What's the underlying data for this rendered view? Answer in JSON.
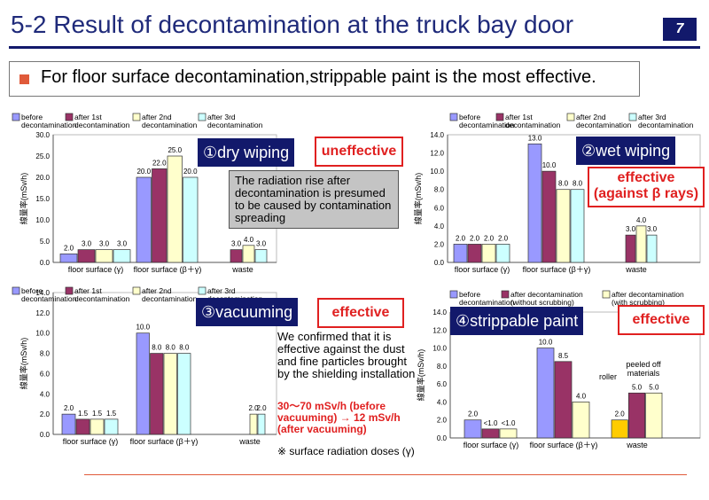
{
  "header": {
    "title": "5-2 Result of decontamination at the truck bay door",
    "page_number": "7",
    "headline": "For floor surface decontamination,strippable paint is the most effective."
  },
  "colors": {
    "before": "#9999ff",
    "after1": "#993366",
    "after2": "#ffffcc",
    "after3": "#ccffff",
    "roller": "#ffcc00",
    "accent": "#12196b",
    "red": "#e02020"
  },
  "panels": {
    "p1": {
      "tag": "①dry wiping",
      "verdict": "uneffective",
      "note": "The radiation rise after decontamination is presumed to be caused by contamination spreading"
    },
    "p2": {
      "tag": "②wet wiping",
      "verdict_line1": "effective",
      "verdict_line2": "(against β rays)"
    },
    "p3": {
      "tag": "③vacuuming",
      "verdict": "effective",
      "note": "We confirmed that it is effective against the dust and fine particles brought by the shielding installation",
      "note_red": "30～70 mSv/h (before vacuuming) → 12 mSv/h (after vacuuming)",
      "footnote": "※  surface radiation doses (γ)"
    },
    "p4": {
      "tag": "④strippable paint",
      "verdict": "effective"
    }
  },
  "chart_data": [
    {
      "type": "bar",
      "ylabel": "線量率(mSv/h)",
      "ylim": [
        0,
        30
      ],
      "yticks": [
        "0.0",
        "5.0",
        "10.0",
        "15.0",
        "20.0",
        "25.0",
        "30.0"
      ],
      "categories": [
        "floor surface (γ)",
        "floor surface (β＋γ)",
        "waste"
      ],
      "series": [
        {
          "name": "before decontamination",
          "values": [
            2.0,
            20.0,
            null
          ]
        },
        {
          "name": "after 1st decontamination",
          "values": [
            3.0,
            22.0,
            3.0
          ]
        },
        {
          "name": "after 2nd decontamination",
          "values": [
            3.0,
            25.0,
            4.0
          ]
        },
        {
          "name": "after 3rd decontamination",
          "values": [
            3.0,
            20.0,
            3.0
          ]
        }
      ],
      "labels": [
        [
          "2.0",
          "20.0",
          ""
        ],
        [
          "3.0",
          "22.0",
          "3.0"
        ],
        [
          "3.0",
          "25.0",
          "4.0"
        ],
        [
          "3.0",
          "20.0",
          "3.0"
        ]
      ]
    },
    {
      "type": "bar",
      "ylabel": "線量率(mSv/h)",
      "ylim": [
        0,
        14
      ],
      "yticks": [
        "0.0",
        "2.0",
        "4.0",
        "6.0",
        "8.0",
        "10.0",
        "12.0",
        "14.0"
      ],
      "categories": [
        "floor surface (γ)",
        "floor surface (β＋γ)",
        "waste"
      ],
      "series": [
        {
          "name": "before decontamination",
          "values": [
            2.0,
            13.0,
            null
          ]
        },
        {
          "name": "after 1st decontamination",
          "values": [
            2.0,
            10.0,
            3.0
          ]
        },
        {
          "name": "after 2nd decontamination",
          "values": [
            2.0,
            8.0,
            4.0
          ]
        },
        {
          "name": "after 3rd decontamination",
          "values": [
            2.0,
            8.0,
            3.0
          ]
        }
      ],
      "labels": [
        [
          "2.0",
          "13.0",
          ""
        ],
        [
          "2.0",
          "10.0",
          "3.0"
        ],
        [
          "2.0",
          "8.0",
          "4.0"
        ],
        [
          "2.0",
          "8.0",
          "3.0"
        ]
      ]
    },
    {
      "type": "bar",
      "ylabel": "線量率(mSv/h)",
      "ylim": [
        0,
        14
      ],
      "yticks": [
        "0.0",
        "2.0",
        "4.0",
        "6.0",
        "8.0",
        "10.0",
        "12.0",
        "14.0"
      ],
      "categories": [
        "floor surface (γ)",
        "floor surface (β＋γ)",
        "waste"
      ],
      "series": [
        {
          "name": "before decontamination",
          "values": [
            2.0,
            10.0,
            null
          ]
        },
        {
          "name": "after 1st decontamination",
          "values": [
            1.5,
            8.0,
            null
          ]
        },
        {
          "name": "after 2nd decontamination",
          "values": [
            1.5,
            8.0,
            2.0
          ]
        },
        {
          "name": "after 3rd decontamination",
          "values": [
            1.5,
            8.0,
            2.0
          ]
        }
      ],
      "labels": [
        [
          "2.0",
          "10.0",
          ""
        ],
        [
          "1.5",
          "8.0",
          ""
        ],
        [
          "1.5",
          "8.0",
          "2.0"
        ],
        [
          "1.5",
          "8.0",
          "2.0"
        ]
      ]
    },
    {
      "type": "bar",
      "ylabel": "線量率(mSv/h)",
      "ylim": [
        0,
        14
      ],
      "yticks": [
        "0.0",
        "2.0",
        "4.0",
        "6.0",
        "8.0",
        "10.0",
        "12.0",
        "14.0"
      ],
      "categories": [
        "floor surface (γ)",
        "floor surface (β＋γ)",
        "waste"
      ],
      "series": [
        {
          "name": "before decontamination",
          "values": [
            2.0,
            10.0,
            2.0
          ]
        },
        {
          "name": "after decontamination (without scrubbing)",
          "values": [
            1.0,
            8.5,
            5.0
          ]
        },
        {
          "name": "after decontamination (with scrubbing)",
          "values": [
            1.0,
            4.0,
            5.0
          ]
        }
      ],
      "labels": [
        [
          "2.0",
          "10.0",
          "2.0"
        ],
        [
          "<1.0",
          "8.5",
          "5.0"
        ],
        [
          "<1.0",
          "4.0",
          "5.0"
        ]
      ],
      "annotations": [
        "roller",
        "peeled off materials"
      ]
    }
  ]
}
